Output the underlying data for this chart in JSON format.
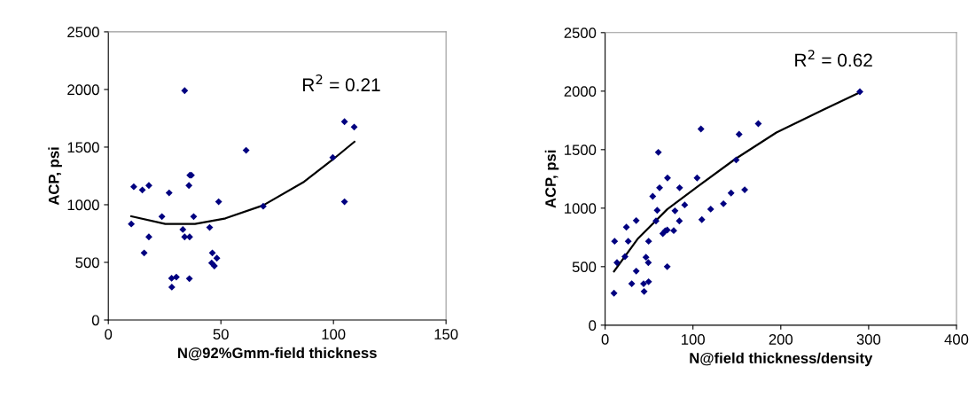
{
  "chart_data": [
    {
      "type": "scatter",
      "xlabel": "N@92%Gmm-field thickness",
      "ylabel": "ACP, psi",
      "xlim": [
        0,
        150
      ],
      "xticks": [
        0,
        50,
        100,
        150
      ],
      "ylim": [
        0,
        2500
      ],
      "yticks": [
        0,
        500,
        1000,
        1500,
        2000,
        2500
      ],
      "grid": false,
      "legend": false,
      "marker": "diamond",
      "annotations": [
        "R$^{2}$ = 0.21"
      ],
      "series": [
        {
          "color": "#000080",
          "x": [
            10.2,
            11.3,
            15.1,
            18.0,
            27.0,
            23.8,
            18.0,
            15.9,
            33.9,
            36.2,
            36.9,
            35.8,
            37.9,
            33.1,
            33.9,
            36.1,
            28.1,
            30.2,
            28.2,
            36.0,
            49.0,
            45.0,
            46.2,
            48.2,
            45.9,
            47.1,
            61.2,
            68.8,
            99.7,
            104.9,
            109.2,
            104.9
          ],
          "values": [
            833,
            1156,
            1128,
            1167,
            1103,
            897,
            721,
            582,
            1990,
            1256,
            1256,
            1167,
            897,
            785,
            721,
            721,
            362,
            372,
            285,
            359,
            1026,
            803,
            582,
            536,
            495,
            469,
            1472,
            987,
            1410,
            1721,
            1674,
            1026
          ]
        },
        {
          "type": "line",
          "color": "#000000",
          "marker": "none",
          "x": [
            10.2,
            25.3,
            38.5,
            51.6,
            68.8,
            87.0,
            99.7,
            109.3
          ],
          "values": [
            900,
            833,
            833,
            879,
            995,
            1200,
            1392,
            1546
          ]
        }
      ]
    },
    {
      "type": "scatter",
      "xlabel": "N@field thickness/density",
      "ylabel": "ACP, psi",
      "xlim": [
        0,
        400
      ],
      "xticks": [
        0,
        100,
        200,
        300,
        400
      ],
      "ylim": [
        0,
        2500
      ],
      "yticks": [
        0,
        500,
        1000,
        1500,
        2000,
        2500
      ],
      "grid": false,
      "legend": false,
      "marker": "diamond",
      "annotations": [
        "R$^{2}$ = 0.62"
      ],
      "series": [
        {
          "color": "#000080",
          "x": [
            10.1,
            10.8,
            13.5,
            22.6,
            24.2,
            26.3,
            30.3,
            35.4,
            35.4,
            43.8,
            44.4,
            46.5,
            49.2,
            49.5,
            49.5,
            54.2,
            57.9,
            59.3,
            60.6,
            62.0,
            65.7,
            68.4,
            70.7,
            71.0,
            70.7,
            78.1,
            79.5,
            84.5,
            84.8,
            90.6,
            104.7,
            109.1,
            110.1,
            120.2,
            134.7,
            143.4,
            149.2,
            152.5,
            158.9,
            174.4,
            290
          ],
          "values": [
            273,
            717,
            535,
            586,
            838,
            717,
            354,
            894,
            462,
            354,
            288,
            581,
            535,
            717,
            371,
            1101,
            891,
            982,
            1477,
            1174,
            783,
            806,
            500,
            1258,
            813,
            808,
            977,
            891,
            1174,
            1028,
            1258,
            1677,
            902,
            992,
            1038,
            1129,
            1412,
            1631,
            1157,
            1722,
            1995
          ]
        },
        {
          "type": "line",
          "color": "#000000",
          "marker": "none",
          "x": [
            10.1,
            37,
            70.7,
            104.4,
            148,
            195,
            248.5,
            290
          ],
          "values": [
            460,
            737,
            990,
            1179,
            1419,
            1646,
            1841,
            1990
          ]
        }
      ]
    }
  ]
}
